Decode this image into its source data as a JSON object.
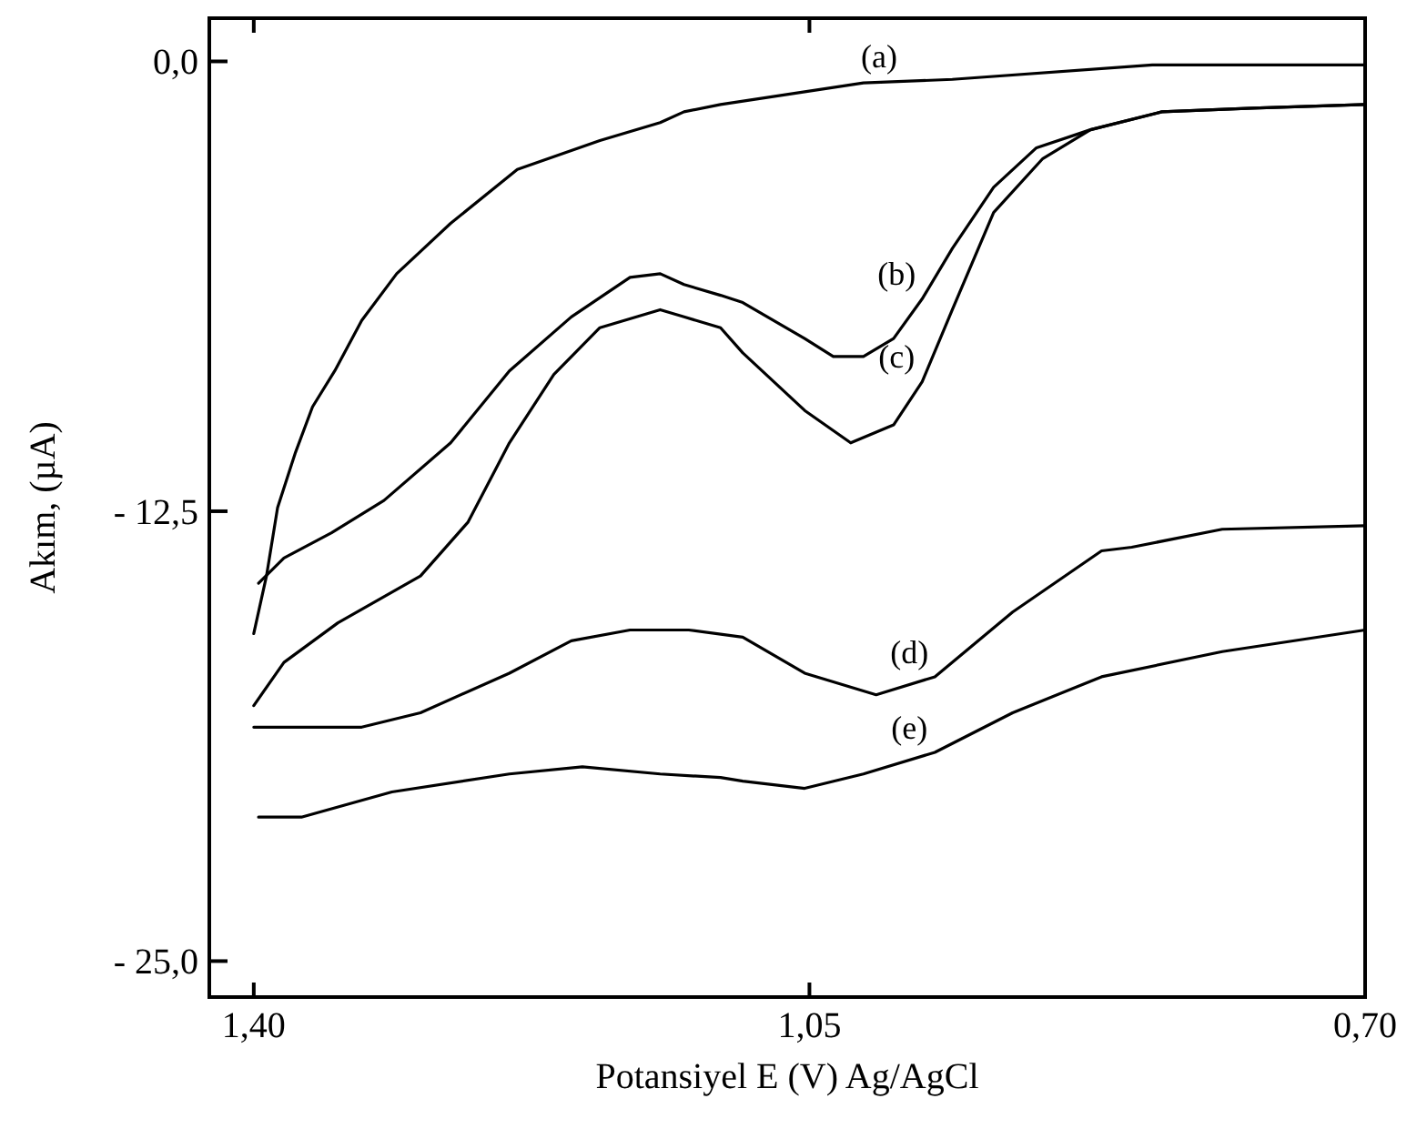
{
  "chart_data": {
    "type": "line",
    "xlabel": "Potansiyel E (V) Ag/AgCl",
    "ylabel": "Akım, (µA)",
    "xlim": [
      1.428,
      0.7
    ],
    "ylim": [
      -26,
      1.2
    ],
    "xticks": [
      {
        "value": 1.4,
        "label": "1,40"
      },
      {
        "value": 1.05,
        "label": "1,05"
      },
      {
        "value": 0.7,
        "label": "0,70"
      }
    ],
    "yticks": [
      {
        "value": 0,
        "label": "0,0"
      },
      {
        "value": -12.5,
        "label": "- 12,5"
      },
      {
        "value": -25,
        "label": "- 25,0"
      }
    ],
    "grid": false,
    "marker": "none",
    "line_style": "solid",
    "series": [
      {
        "color": "#000000",
        "x": [
          1.4,
          1.392,
          1.385,
          1.374,
          1.363,
          1.349,
          1.332,
          1.31,
          1.276,
          1.234,
          1.182,
          1.144,
          1.129,
          1.106,
          1.016,
          0.96,
          0.834,
          0.7
        ],
        "values": [
          -15.9,
          -14.3,
          -12.4,
          -10.9,
          -9.6,
          -8.6,
          -7.2,
          -5.9,
          -4.5,
          -3.0,
          -2.2,
          -1.7,
          -1.4,
          -1.2,
          -0.6,
          -0.5,
          -0.1,
          -0.1
        ]
      },
      {
        "color": "#000000",
        "x": [
          1.397,
          1.381,
          1.351,
          1.318,
          1.276,
          1.239,
          1.2,
          1.163,
          1.144,
          1.129,
          1.106,
          1.092,
          1.053,
          1.035,
          1.016,
          0.997,
          0.979,
          0.96,
          0.934,
          0.907,
          0.873,
          0.828,
          0.771,
          0.7
        ],
        "values": [
          -14.5,
          -13.8,
          -13.1,
          -12.2,
          -10.6,
          -8.6,
          -7.1,
          -6.0,
          -5.9,
          -6.2,
          -6.5,
          -6.7,
          -7.7,
          -8.2,
          -8.2,
          -7.7,
          -6.6,
          -5.2,
          -3.5,
          -2.4,
          -1.9,
          -1.4,
          -1.3,
          -1.2
        ]
      },
      {
        "color": "#000000",
        "x": [
          1.4,
          1.381,
          1.347,
          1.295,
          1.265,
          1.239,
          1.211,
          1.182,
          1.144,
          1.129,
          1.106,
          1.092,
          1.053,
          1.024,
          0.997,
          0.979,
          0.96,
          0.934,
          0.903,
          0.873,
          0.828,
          0.771,
          0.7
        ],
        "values": [
          -17.9,
          -16.7,
          -15.6,
          -14.3,
          -12.8,
          -10.6,
          -8.7,
          -7.4,
          -6.9,
          -7.1,
          -7.4,
          -8.1,
          -9.7,
          -10.6,
          -10.1,
          -8.9,
          -6.9,
          -4.2,
          -2.7,
          -1.9,
          -1.4,
          -1.3,
          -1.2
        ]
      },
      {
        "color": "#000000",
        "x": [
          1.4,
          1.332,
          1.295,
          1.239,
          1.2,
          1.163,
          1.126,
          1.092,
          1.053,
          1.008,
          0.971,
          0.922,
          0.866,
          0.847,
          0.79,
          0.7
        ],
        "values": [
          -18.5,
          -18.5,
          -18.1,
          -17.0,
          -16.1,
          -15.8,
          -15.8,
          -16.0,
          -17.0,
          -17.6,
          -17.1,
          -15.3,
          -13.6,
          -13.5,
          -13.0,
          -12.9
        ]
      },
      {
        "color": "#000000",
        "x": [
          1.397,
          1.37,
          1.313,
          1.239,
          1.193,
          1.144,
          1.106,
          1.092,
          1.053,
          1.016,
          0.971,
          0.922,
          0.866,
          0.79,
          0.7
        ],
        "values": [
          -21.0,
          -21.0,
          -20.3,
          -19.8,
          -19.6,
          -19.8,
          -19.9,
          -20.0,
          -20.2,
          -19.8,
          -19.2,
          -18.1,
          -17.1,
          -16.4,
          -15.8
        ]
      }
    ],
    "annotations": [
      {
        "text": "(a)",
        "x": 0.99,
        "y": -0.55
      },
      {
        "text": "(b)",
        "x": 0.979,
        "y": -6.6
      },
      {
        "text": "(c)",
        "x": 0.979,
        "y": -8.9
      },
      {
        "text": "(d)",
        "x": 0.971,
        "y": -17.1
      },
      {
        "text": "(e)",
        "x": 0.971,
        "y": -19.2
      }
    ]
  }
}
